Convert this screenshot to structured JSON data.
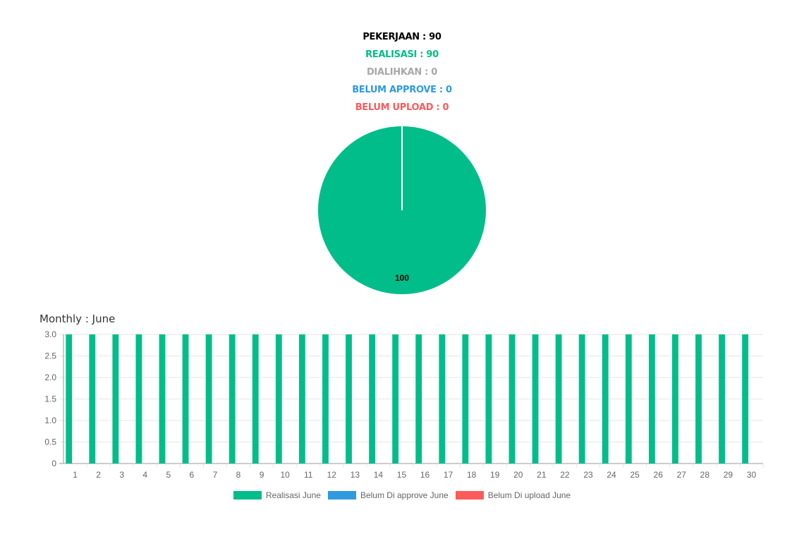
{
  "summary": {
    "pekerjaan": "PEKERJAAN : 90",
    "realisasi": "REALISASI : 90",
    "dialihkan": "DIALIHKAN : 0",
    "belum_approve": "BELUM APPROVE : 0",
    "belum_upload": "BELUM UPLOAD : 0"
  },
  "colors": {
    "pekerjaan": "#000000",
    "realisasi": "#00bd8a",
    "dialihkan": "#a8a8a8",
    "belum_approve": "#2f9ae0",
    "belum_upload": "#ff5a5a"
  },
  "monthly_title": "Monthly : June",
  "chart_data": [
    {
      "type": "pie",
      "slices": [
        {
          "label": "",
          "value": 100,
          "color": "#00bd8a"
        }
      ],
      "data_labels": [
        "100"
      ]
    },
    {
      "type": "bar",
      "categories": [
        "1",
        "2",
        "3",
        "4",
        "5",
        "6",
        "7",
        "8",
        "9",
        "10",
        "11",
        "12",
        "13",
        "14",
        "15",
        "16",
        "17",
        "18",
        "19",
        "20",
        "21",
        "22",
        "23",
        "24",
        "25",
        "26",
        "27",
        "28",
        "29",
        "30"
      ],
      "series": [
        {
          "name": "Realisasi June",
          "color": "#00bd8a",
          "values": [
            3,
            3,
            3,
            3,
            3,
            3,
            3,
            3,
            3,
            3,
            3,
            3,
            3,
            3,
            3,
            3,
            3,
            3,
            3,
            3,
            3,
            3,
            3,
            3,
            3,
            3,
            3,
            3,
            3,
            3
          ]
        },
        {
          "name": "Belum Di approve June",
          "color": "#2f9ae0",
          "values": [
            0,
            0,
            0,
            0,
            0,
            0,
            0,
            0,
            0,
            0,
            0,
            0,
            0,
            0,
            0,
            0,
            0,
            0,
            0,
            0,
            0,
            0,
            0,
            0,
            0,
            0,
            0,
            0,
            0,
            0
          ]
        },
        {
          "name": "Belum Di upload June",
          "color": "#ff5a5a",
          "values": [
            0,
            0,
            0,
            0,
            0,
            0,
            0,
            0,
            0,
            0,
            0,
            0,
            0,
            0,
            0,
            0,
            0,
            0,
            0,
            0,
            0,
            0,
            0,
            0,
            0,
            0,
            0,
            0,
            0,
            0
          ]
        }
      ],
      "ylim": [
        0,
        3
      ],
      "yticks": [
        "0",
        "0.5",
        "1.0",
        "1.5",
        "2.0",
        "2.5",
        "3.0"
      ],
      "grid": true,
      "legend_position": "bottom"
    }
  ]
}
